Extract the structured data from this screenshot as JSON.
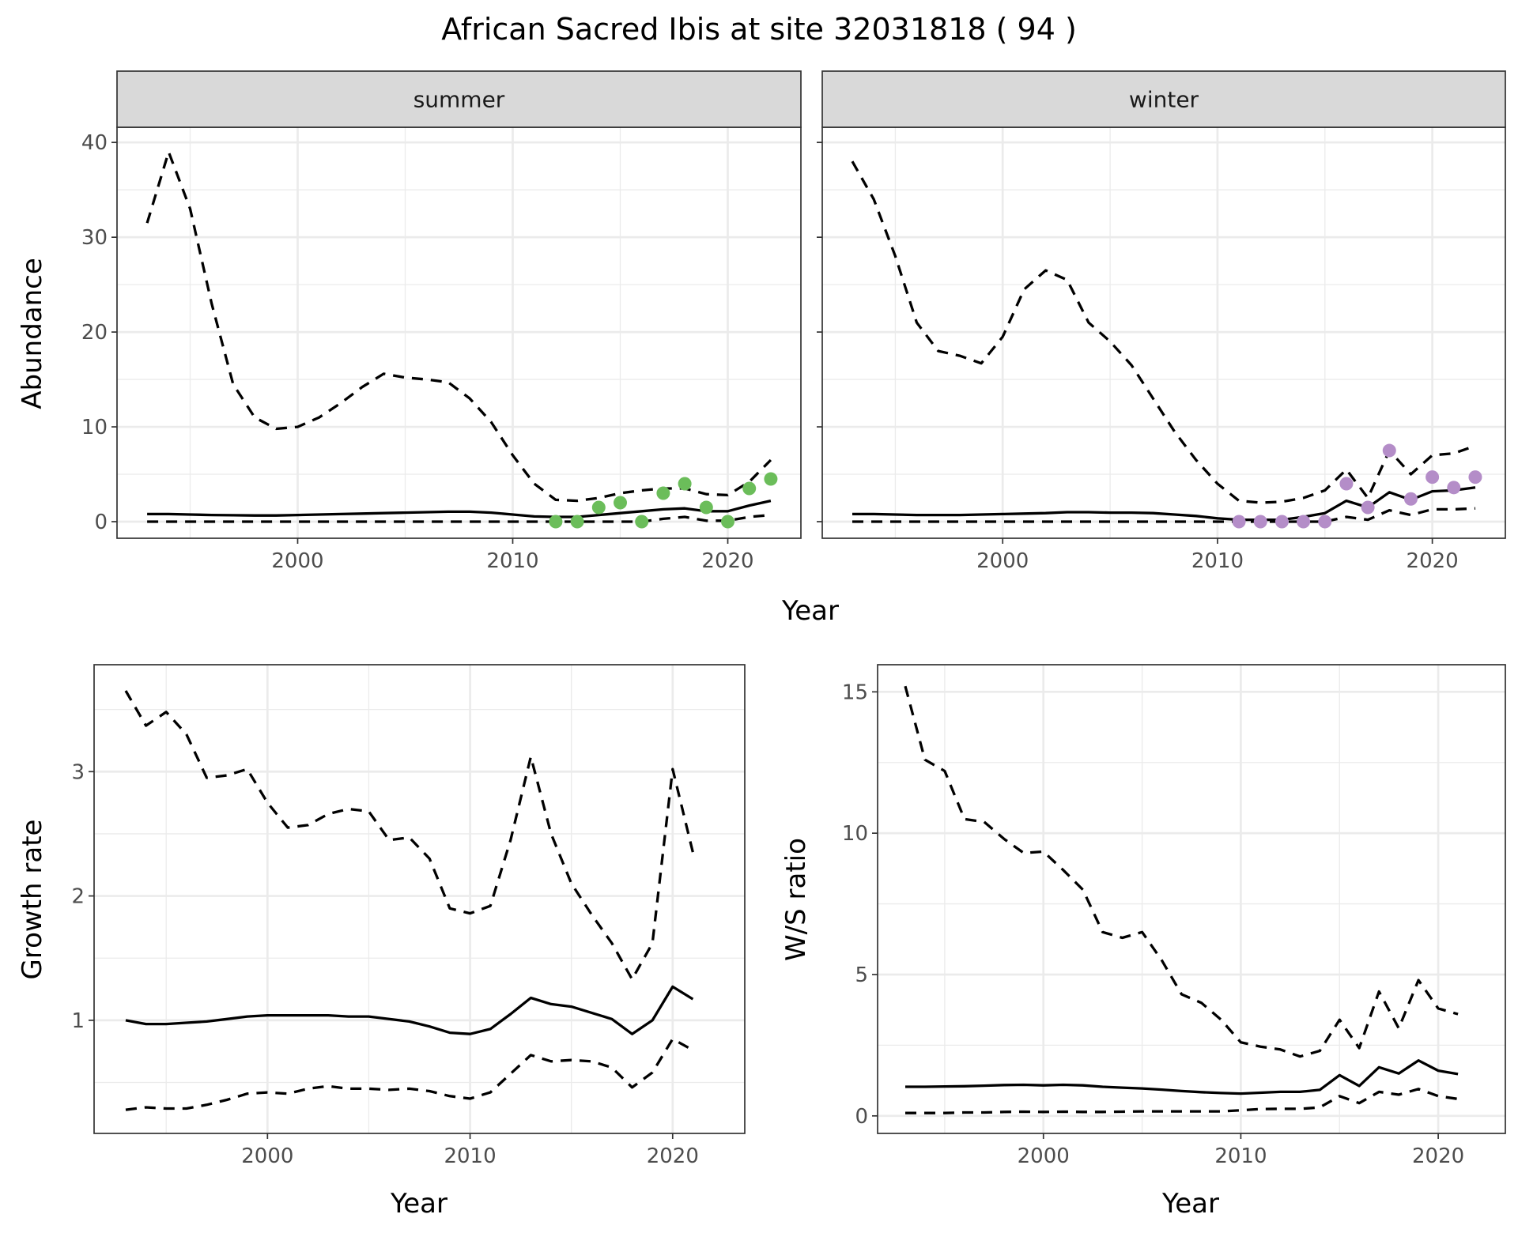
{
  "title": "African Sacred Ibis at site 32031818 ( 94 )",
  "colors": {
    "summer_points": "#6bbd5a",
    "winter_points": "#b48dc8",
    "lines": "#000000",
    "strip_bg": "#d9d9d9",
    "grid": "#ebebeb",
    "border": "#333333",
    "tick_text": "#4d4d4d"
  },
  "chart_data": [
    {
      "type": "line",
      "facet": "summer",
      "xlabel": "Year",
      "ylabel": "Abundance",
      "xlim": [
        1991.6,
        2023.4
      ],
      "ylim": [
        -1.75,
        41.6
      ],
      "xticks": [
        "2000",
        "2010",
        "2020"
      ],
      "yticks": [
        "0",
        "10",
        "20",
        "30",
        "40"
      ],
      "grid": true,
      "x": [
        1993,
        1994,
        1995,
        1996,
        1997,
        1998,
        1999,
        2000,
        2001,
        2002,
        2003,
        2004,
        2005,
        2006,
        2007,
        2008,
        2009,
        2010,
        2011,
        2012,
        2013,
        2014,
        2015,
        2016,
        2017,
        2018,
        2019,
        2020,
        2021,
        2022
      ],
      "series": [
        {
          "style": "dashed",
          "values": [
            31.5,
            39,
            33,
            23,
            14.5,
            11,
            9.8,
            10,
            11,
            12.5,
            14.2,
            15.6,
            15.2,
            15,
            14.7,
            13,
            10.5,
            7,
            4,
            2.3,
            2.2,
            2.5,
            3,
            3.3,
            3.5,
            3.5,
            2.9,
            2.8,
            4.2,
            6.5
          ]
        },
        {
          "style": "solid",
          "values": [
            0.8,
            0.8,
            0.75,
            0.7,
            0.68,
            0.65,
            0.65,
            0.7,
            0.75,
            0.8,
            0.85,
            0.9,
            0.95,
            1.0,
            1.05,
            1.05,
            0.95,
            0.75,
            0.55,
            0.5,
            0.5,
            0.7,
            0.9,
            1.1,
            1.3,
            1.4,
            1.1,
            1.1,
            1.7,
            2.2
          ]
        },
        {
          "style": "dashed",
          "values": [
            0,
            0,
            0,
            0,
            0,
            0,
            0,
            0,
            0,
            0,
            0,
            0,
            0,
            0,
            0,
            0,
            0,
            0,
            0,
            0,
            0,
            0,
            0,
            0,
            0.3,
            0.5,
            0.1,
            0.1,
            0.5,
            0.7
          ]
        }
      ],
      "points": {
        "x": [
          2012,
          2013,
          2014,
          2015,
          2016,
          2017,
          2018,
          2019,
          2020,
          2021,
          2022
        ],
        "y": [
          0,
          0,
          1.5,
          2,
          0,
          3,
          4,
          1.5,
          0,
          3.5,
          4.5
        ]
      }
    },
    {
      "type": "line",
      "facet": "winter",
      "xlabel": "Year",
      "ylabel": "Abundance",
      "xlim": [
        1991.6,
        2023.4
      ],
      "ylim": [
        -1.75,
        41.6
      ],
      "xticks": [
        "2000",
        "2010",
        "2020"
      ],
      "yticks": [
        "0",
        "10",
        "20",
        "30",
        "40"
      ],
      "grid": true,
      "x": [
        1993,
        1994,
        1995,
        1996,
        1997,
        1998,
        1999,
        2000,
        2001,
        2002,
        2003,
        2004,
        2005,
        2006,
        2007,
        2008,
        2009,
        2010,
        2011,
        2012,
        2013,
        2014,
        2015,
        2016,
        2017,
        2018,
        2019,
        2020,
        2021,
        2022
      ],
      "series": [
        {
          "style": "dashed",
          "values": [
            38,
            34,
            28,
            21,
            18,
            17.5,
            16.7,
            19.5,
            24.5,
            26.5,
            25.5,
            21,
            19,
            16.5,
            13,
            9.5,
            6.5,
            4,
            2.2,
            2.0,
            2.1,
            2.5,
            3.3,
            5.5,
            2.5,
            7.5,
            5,
            7,
            7.2,
            8
          ]
        },
        {
          "style": "solid",
          "values": [
            0.8,
            0.8,
            0.75,
            0.7,
            0.7,
            0.7,
            0.75,
            0.8,
            0.85,
            0.9,
            1.0,
            1.0,
            0.95,
            0.95,
            0.9,
            0.75,
            0.6,
            0.35,
            0.2,
            0.2,
            0.2,
            0.5,
            0.9,
            2.2,
            1.5,
            3.1,
            2.3,
            3.2,
            3.3,
            3.6
          ]
        },
        {
          "style": "dashed",
          "values": [
            0,
            0,
            0,
            0,
            0,
            0,
            0,
            0,
            0,
            0,
            0,
            0,
            0,
            0,
            0,
            0,
            0,
            0,
            0,
            0,
            0,
            0,
            0,
            0.5,
            0.2,
            1.2,
            0.7,
            1.3,
            1.3,
            1.4
          ]
        }
      ],
      "points": {
        "x": [
          2011,
          2012,
          2013,
          2014,
          2015,
          2016,
          2017,
          2018,
          2019,
          2020,
          2021,
          2022
        ],
        "y": [
          0,
          0,
          0,
          0,
          0,
          4,
          1.5,
          7.5,
          2.4,
          4.7,
          3.6,
          4.7
        ]
      }
    },
    {
      "type": "line",
      "xlabel": "Year",
      "ylabel": "Growth rate",
      "xlim": [
        1991.44,
        2023.56
      ],
      "ylim": [
        0.09,
        3.86
      ],
      "xticks": [
        "2000",
        "2010",
        "2020"
      ],
      "yticks": [
        "1",
        "2",
        "3"
      ],
      "grid": true,
      "x": [
        1993,
        1994,
        1995,
        1996,
        1997,
        1998,
        1999,
        2000,
        2001,
        2002,
        2003,
        2004,
        2005,
        2006,
        2007,
        2008,
        2009,
        2010,
        2011,
        2012,
        2013,
        2014,
        2015,
        2016,
        2017,
        2018,
        2019,
        2020,
        2021
      ],
      "series": [
        {
          "style": "dashed",
          "values": [
            3.65,
            3.37,
            3.48,
            3.3,
            2.95,
            2.97,
            3.02,
            2.75,
            2.55,
            2.57,
            2.66,
            2.7,
            2.68,
            2.45,
            2.47,
            2.3,
            1.9,
            1.86,
            1.92,
            2.45,
            3.12,
            2.5,
            2.1,
            1.85,
            1.62,
            1.33,
            1.62,
            3.02,
            2.35
          ]
        },
        {
          "style": "solid",
          "values": [
            1.0,
            0.97,
            0.97,
            0.98,
            0.99,
            1.01,
            1.03,
            1.04,
            1.04,
            1.04,
            1.04,
            1.03,
            1.03,
            1.01,
            0.99,
            0.95,
            0.9,
            0.89,
            0.93,
            1.05,
            1.18,
            1.13,
            1.11,
            1.06,
            1.01,
            0.89,
            1.0,
            1.27,
            1.17
          ]
        },
        {
          "style": "dashed",
          "values": [
            0.28,
            0.3,
            0.29,
            0.29,
            0.32,
            0.36,
            0.41,
            0.42,
            0.41,
            0.45,
            0.47,
            0.45,
            0.45,
            0.44,
            0.45,
            0.43,
            0.39,
            0.37,
            0.42,
            0.57,
            0.72,
            0.67,
            0.68,
            0.67,
            0.62,
            0.46,
            0.58,
            0.85,
            0.76
          ]
        }
      ]
    },
    {
      "type": "line",
      "xlabel": "Year",
      "ylabel": "W/S ratio",
      "xlim": [
        1991.6,
        2023.4
      ],
      "ylim": [
        -0.62,
        15.96
      ],
      "xticks": [
        "2000",
        "2010",
        "2020"
      ],
      "yticks": [
        "0",
        "5",
        "10",
        "15"
      ],
      "grid": true,
      "x": [
        1993,
        1994,
        1995,
        1996,
        1997,
        1998,
        1999,
        2000,
        2001,
        2002,
        2003,
        2004,
        2005,
        2006,
        2007,
        2008,
        2009,
        2010,
        2011,
        2012,
        2013,
        2014,
        2015,
        2016,
        2017,
        2018,
        2019,
        2020,
        2021
      ],
      "series": [
        {
          "style": "dashed",
          "values": [
            15.2,
            12.6,
            12.2,
            10.5,
            10.4,
            9.8,
            9.3,
            9.35,
            8.7,
            8.0,
            6.5,
            6.3,
            6.5,
            5.5,
            4.3,
            4.0,
            3.4,
            2.6,
            2.45,
            2.35,
            2.1,
            2.3,
            3.4,
            2.4,
            4.4,
            3.1,
            4.8,
            3.8,
            3.6
          ]
        },
        {
          "style": "solid",
          "values": [
            1.03,
            1.03,
            1.04,
            1.05,
            1.07,
            1.09,
            1.1,
            1.08,
            1.1,
            1.08,
            1.03,
            1.0,
            0.97,
            0.93,
            0.88,
            0.84,
            0.81,
            0.79,
            0.82,
            0.85,
            0.85,
            0.92,
            1.44,
            1.06,
            1.72,
            1.5,
            1.96,
            1.6,
            1.48
          ]
        },
        {
          "style": "dashed",
          "values": [
            0.1,
            0.1,
            0.1,
            0.12,
            0.12,
            0.14,
            0.15,
            0.14,
            0.15,
            0.14,
            0.14,
            0.15,
            0.16,
            0.16,
            0.16,
            0.16,
            0.16,
            0.2,
            0.24,
            0.25,
            0.25,
            0.3,
            0.7,
            0.45,
            0.85,
            0.75,
            0.95,
            0.7,
            0.6
          ]
        }
      ]
    }
  ]
}
